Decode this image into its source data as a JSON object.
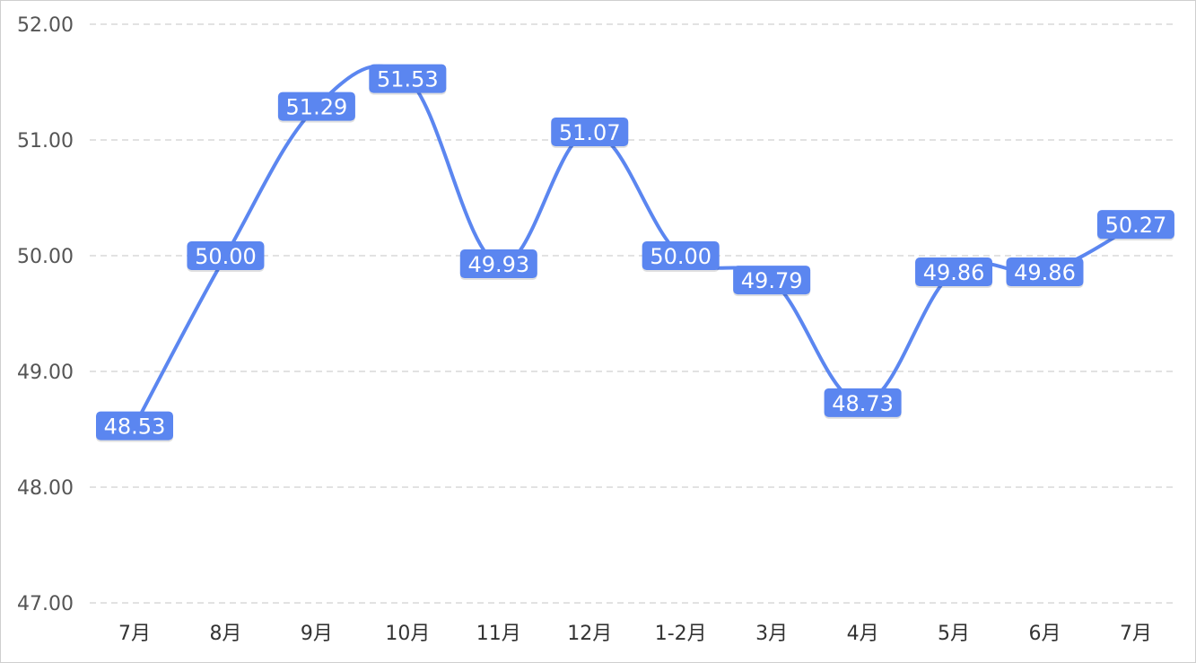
{
  "chart_data": {
    "type": "line",
    "title": "",
    "xlabel": "",
    "ylabel": "",
    "categories": [
      "7月",
      "8月",
      "9月",
      "10月",
      "11月",
      "12月",
      "1-2月",
      "3月",
      "4月",
      "5月",
      "6月",
      "7月"
    ],
    "series": [
      {
        "values": [
          48.53,
          50.0,
          51.29,
          51.53,
          49.93,
          51.07,
          50.0,
          49.79,
          48.73,
          49.86,
          49.86,
          50.27
        ],
        "labels": [
          "48.53",
          "50.00",
          "51.29",
          "51.53",
          "49.93",
          "51.07",
          "50.00",
          "49.79",
          "48.73",
          "49.86",
          "49.86",
          "50.27"
        ]
      }
    ],
    "ylim": [
      47,
      52
    ],
    "yticks": [
      "47.00",
      "48.00",
      "49.00",
      "50.00",
      "51.00",
      "52.00"
    ],
    "grid": true,
    "smooth": true,
    "colors": {
      "line": "#5b86f0",
      "label_bg": "#5b86f0",
      "label_text": "#ffffff",
      "grid": "#d9d9d9"
    }
  }
}
